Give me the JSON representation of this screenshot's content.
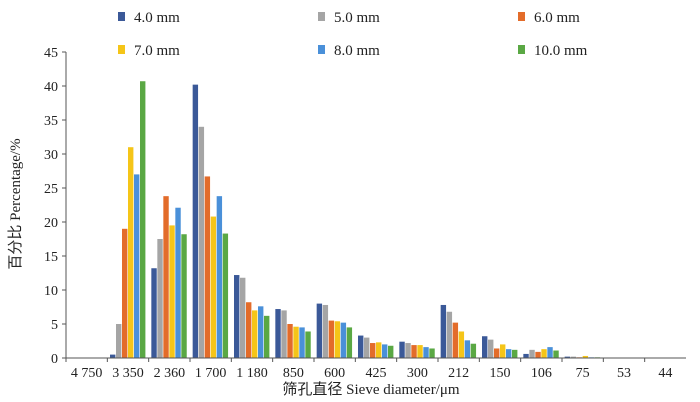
{
  "chart_data": {
    "type": "bar",
    "title": "",
    "xlabel": "筛孔直径 Sieve diameter/μm",
    "ylabel": "百分比 Percentage/%",
    "ylim": [
      0,
      45
    ],
    "yticks": [
      0,
      5,
      10,
      15,
      20,
      25,
      30,
      35,
      40,
      45
    ],
    "grid": false,
    "legend_position": "top",
    "categories": [
      "4 750",
      "3 350",
      "2 360",
      "1 700",
      "1 180",
      "850",
      "600",
      "425",
      "300",
      "212",
      "150",
      "106",
      "75",
      "53",
      "44"
    ],
    "series": [
      {
        "name": "4.0  mm",
        "color": "#3b5998",
        "values": [
          0,
          0.5,
          13.2,
          40.2,
          12.2,
          7.2,
          8.0,
          3.3,
          2.4,
          7.8,
          3.2,
          0.6,
          0.2,
          0,
          0
        ]
      },
      {
        "name": "5.0  mm",
        "color": "#a5a5a5",
        "values": [
          0,
          5.0,
          17.5,
          34.0,
          11.8,
          7.0,
          7.8,
          3.0,
          2.2,
          6.8,
          2.7,
          1.2,
          0.2,
          0,
          0
        ]
      },
      {
        "name": "6.0  mm",
        "color": "#e36c2a",
        "values": [
          0,
          19.0,
          23.8,
          26.7,
          8.2,
          5.0,
          5.5,
          2.2,
          1.9,
          5.2,
          1.4,
          0.9,
          0.1,
          0,
          0
        ]
      },
      {
        "name": "7.0  mm",
        "color": "#f5c518",
        "values": [
          0,
          31.0,
          19.5,
          20.8,
          7.0,
          4.6,
          5.4,
          2.3,
          1.9,
          3.9,
          2.0,
          1.3,
          0.3,
          0,
          0
        ]
      },
      {
        "name": "8.0  mm",
        "color": "#4a90d9",
        "values": [
          0,
          27.0,
          22.1,
          23.8,
          7.6,
          4.5,
          5.2,
          2.0,
          1.6,
          2.6,
          1.3,
          1.6,
          0.1,
          0,
          0
        ]
      },
      {
        "name": "10.0  mm",
        "color": "#5aa844",
        "values": [
          0,
          40.7,
          18.2,
          18.3,
          6.2,
          3.9,
          4.5,
          1.8,
          1.4,
          2.1,
          1.2,
          1.1,
          0.1,
          0,
          0
        ]
      }
    ]
  }
}
